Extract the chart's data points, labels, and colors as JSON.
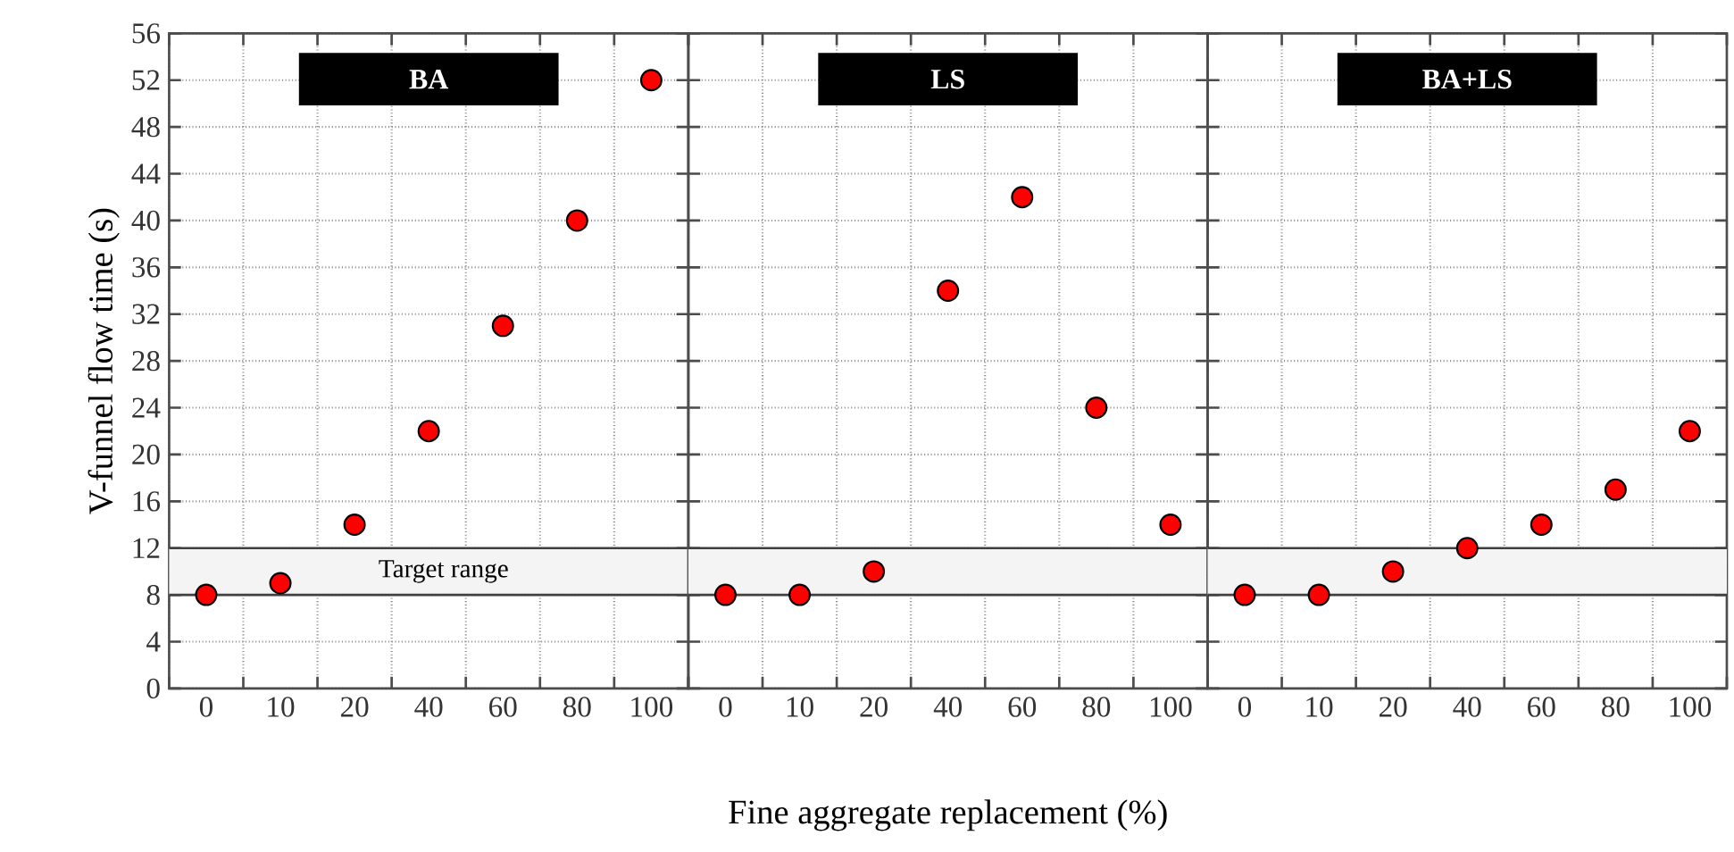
{
  "chart_data": [
    {
      "type": "scatter",
      "title": "BA",
      "ylabel": "V-funnel flow time (s)",
      "categories": [
        "0",
        "10",
        "20",
        "40",
        "60",
        "80",
        "100"
      ],
      "series": [
        {
          "color": "#ff0000",
          "values": [
            8,
            9,
            14,
            22,
            31,
            40,
            52
          ]
        }
      ],
      "ylim": [
        0,
        56
      ],
      "yticks": [
        0,
        4,
        8,
        12,
        16,
        20,
        24,
        28,
        32,
        36,
        40,
        44,
        48,
        52,
        56
      ],
      "grid": true,
      "bands": [
        {
          "axis": "y",
          "from": 8,
          "to": 12,
          "label": "Target range",
          "color": "#f4f4f4"
        }
      ]
    },
    {
      "type": "scatter",
      "title": "LS",
      "xlabel": "Fine aggregate replacement (%)",
      "categories": [
        "0",
        "10",
        "20",
        "40",
        "60",
        "80",
        "100"
      ],
      "series": [
        {
          "color": "#ff0000",
          "values": [
            8,
            8,
            10,
            34,
            42,
            24,
            14
          ]
        }
      ],
      "ylim": [
        0,
        56
      ],
      "yticks": [
        0,
        4,
        8,
        12,
        16,
        20,
        24,
        28,
        32,
        36,
        40,
        44,
        48,
        52,
        56
      ],
      "tick_labels": "x",
      "grid": true,
      "bands": [
        {
          "axis": "y",
          "from": 8,
          "to": 12,
          "color": "#f4f4f4"
        }
      ]
    },
    {
      "type": "scatter",
      "title": "BA+LS",
      "categories": [
        "0",
        "10",
        "20",
        "40",
        "60",
        "80",
        "100"
      ],
      "series": [
        {
          "color": "#ff0000",
          "values": [
            8,
            8,
            10,
            12,
            14,
            17,
            22
          ]
        }
      ],
      "ylim": [
        0,
        56
      ],
      "yticks": [
        0,
        4,
        8,
        12,
        16,
        20,
        24,
        28,
        32,
        36,
        40,
        44,
        48,
        52,
        56
      ],
      "tick_labels": "x",
      "grid": true,
      "bands": [
        {
          "axis": "y",
          "from": 8,
          "to": 12,
          "color": "#f4f4f4"
        }
      ]
    }
  ]
}
